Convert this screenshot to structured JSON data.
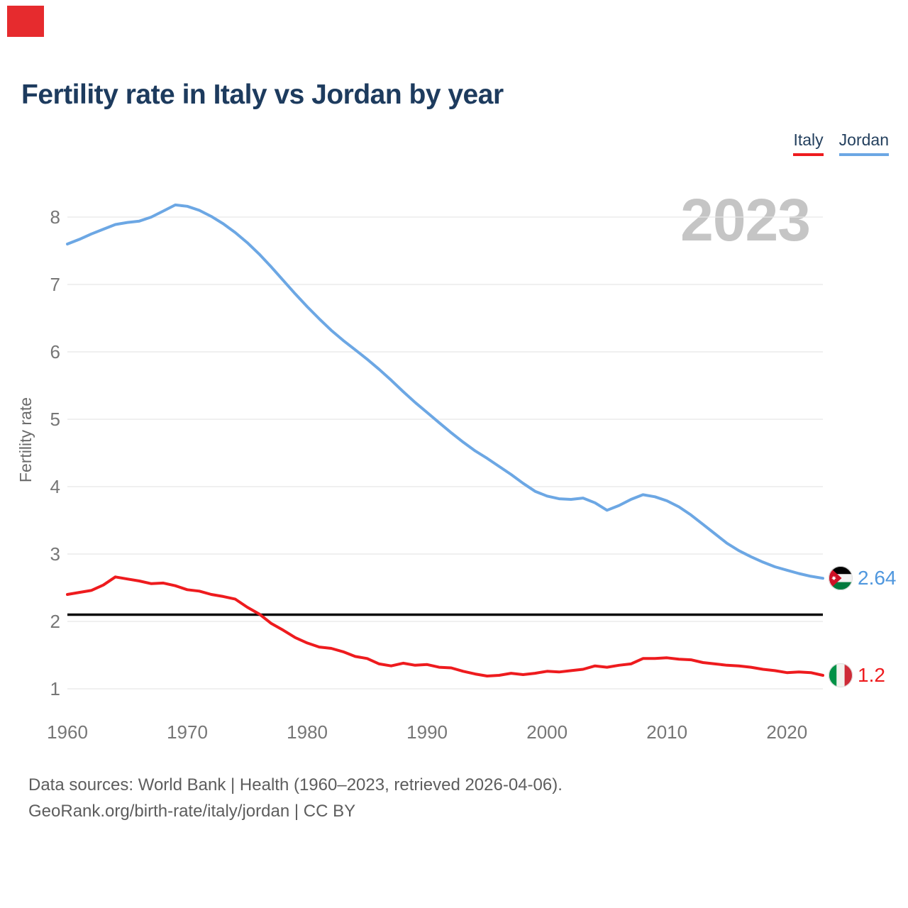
{
  "page": {
    "title": "Fertility rate in Italy vs Jordan by year"
  },
  "legend": {
    "items": [
      {
        "label": "Italy"
      },
      {
        "label": "Jordan"
      }
    ]
  },
  "footer": {
    "line1": "Data sources: World Bank | Health (1960–2023, retrieved 2026-04-06).",
    "line2": "GeoRank.org/birth-rate/italy/jordan | CC BY"
  },
  "chart_data": {
    "type": "line",
    "title": "Fertility rate in Italy vs Jordan by year",
    "ylabel": "Fertility rate",
    "xlabel": "",
    "x_range": [
      1960,
      2023
    ],
    "y_range": [
      1,
      8
    ],
    "yticks": [
      1,
      2,
      3,
      4,
      5,
      6,
      7,
      8
    ],
    "xticks": [
      1960,
      1970,
      1980,
      1990,
      2000,
      2010,
      2020
    ],
    "grid": "horizontal",
    "legend_position": "top-right",
    "watermark": "2023",
    "replacement_level": 2.1,
    "years": [
      1960,
      1961,
      1962,
      1963,
      1964,
      1965,
      1966,
      1967,
      1968,
      1969,
      1970,
      1971,
      1972,
      1973,
      1974,
      1975,
      1976,
      1977,
      1978,
      1979,
      1980,
      1981,
      1982,
      1983,
      1984,
      1985,
      1986,
      1987,
      1988,
      1989,
      1990,
      1991,
      1992,
      1993,
      1994,
      1995,
      1996,
      1997,
      1998,
      1999,
      2000,
      2001,
      2002,
      2003,
      2004,
      2005,
      2006,
      2007,
      2008,
      2009,
      2010,
      2011,
      2012,
      2013,
      2014,
      2015,
      2016,
      2017,
      2018,
      2019,
      2020,
      2021,
      2022,
      2023
    ],
    "series": [
      {
        "name": "Italy",
        "color": "#ee1b1e",
        "end_label": "1.2",
        "values": [
          2.4,
          2.43,
          2.46,
          2.54,
          2.66,
          2.63,
          2.6,
          2.56,
          2.57,
          2.53,
          2.47,
          2.45,
          2.4,
          2.37,
          2.33,
          2.21,
          2.11,
          1.97,
          1.87,
          1.76,
          1.68,
          1.62,
          1.6,
          1.55,
          1.48,
          1.45,
          1.37,
          1.34,
          1.38,
          1.35,
          1.36,
          1.32,
          1.31,
          1.26,
          1.22,
          1.19,
          1.2,
          1.23,
          1.21,
          1.23,
          1.26,
          1.25,
          1.27,
          1.29,
          1.34,
          1.32,
          1.35,
          1.37,
          1.45,
          1.45,
          1.46,
          1.44,
          1.43,
          1.39,
          1.37,
          1.35,
          1.34,
          1.32,
          1.29,
          1.27,
          1.24,
          1.25,
          1.24,
          1.2
        ]
      },
      {
        "name": "Jordan",
        "color": "#6ca7e4",
        "end_label": "2.64",
        "values": [
          7.6,
          7.67,
          7.75,
          7.82,
          7.89,
          7.92,
          7.94,
          8.0,
          8.09,
          8.18,
          8.16,
          8.1,
          8.01,
          7.9,
          7.77,
          7.62,
          7.45,
          7.26,
          7.06,
          6.86,
          6.67,
          6.49,
          6.32,
          6.17,
          6.03,
          5.89,
          5.74,
          5.58,
          5.41,
          5.25,
          5.1,
          4.95,
          4.8,
          4.66,
          4.53,
          4.42,
          4.3,
          4.18,
          4.05,
          3.93,
          3.86,
          3.82,
          3.81,
          3.83,
          3.76,
          3.65,
          3.72,
          3.81,
          3.88,
          3.85,
          3.79,
          3.7,
          3.58,
          3.44,
          3.3,
          3.16,
          3.05,
          2.96,
          2.88,
          2.81,
          2.76,
          2.71,
          2.67,
          2.64
        ]
      }
    ]
  }
}
